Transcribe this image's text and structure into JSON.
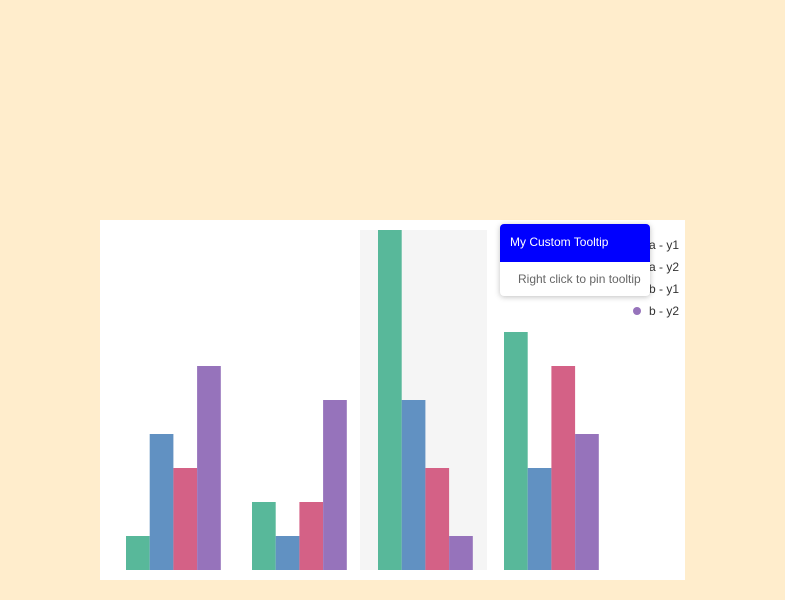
{
  "chart_data": {
    "type": "bar",
    "categories": [
      "",
      "",
      "",
      ""
    ],
    "series": [
      {
        "name": "a - y1",
        "color": "#58b89a",
        "values": [
          1,
          2,
          10,
          7
        ]
      },
      {
        "name": "a - y2",
        "color": "#6191c2",
        "values": [
          4,
          1,
          5,
          3
        ]
      },
      {
        "name": "b - y1",
        "color": "#d46186",
        "values": [
          3,
          2,
          3,
          6
        ]
      },
      {
        "name": "b - y2",
        "color": "#9673bb",
        "values": [
          6,
          5,
          1,
          4
        ]
      }
    ],
    "ylim": [
      0,
      10
    ],
    "highlighted_category_index": 2,
    "grid": false,
    "legend_position": "top-right"
  },
  "tooltip": {
    "title": "My Custom Tooltip",
    "body": "Right click to pin tooltip",
    "header_color": "#0000ff"
  },
  "colors": {
    "page_background": "#ffedcc",
    "chart_background": "#ffffff",
    "hover_band": "#f5f5f5"
  }
}
